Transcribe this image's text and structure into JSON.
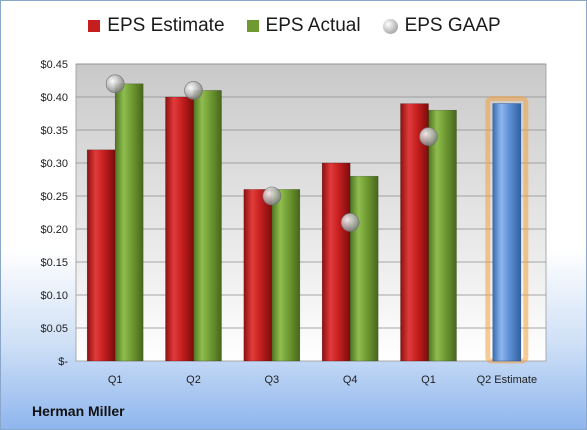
{
  "company": "Herman Miller",
  "chart_data": {
    "type": "bar",
    "categories": [
      "Q1",
      "Q2",
      "Q3",
      "Q4",
      "Q1",
      "Q2 Estimate"
    ],
    "series": [
      {
        "name": "EPS Estimate",
        "color": "#c41e1e",
        "values": [
          0.32,
          0.4,
          0.26,
          0.3,
          0.39,
          null
        ]
      },
      {
        "name": "EPS Actual",
        "color": "#6f9a32",
        "values": [
          0.42,
          0.41,
          0.26,
          0.28,
          0.38,
          null
        ]
      },
      {
        "name": "EPS GAAP",
        "color": "#b0b0b0",
        "marker": "sphere",
        "values": [
          0.42,
          0.41,
          0.25,
          0.21,
          0.34,
          null
        ]
      }
    ],
    "forecast": {
      "category": "Q2 Estimate",
      "value": 0.39,
      "color": "#5b8fd6",
      "glow": "#f0a040"
    },
    "yticks": [
      "$0.45",
      "$0.40",
      "$0.35",
      "$0.30",
      "$0.25",
      "$0.20",
      "$0.15",
      "$0.10",
      "$0.05",
      "$-"
    ],
    "ylim": [
      0,
      0.45
    ],
    "grid": true,
    "legend": "top-center"
  }
}
